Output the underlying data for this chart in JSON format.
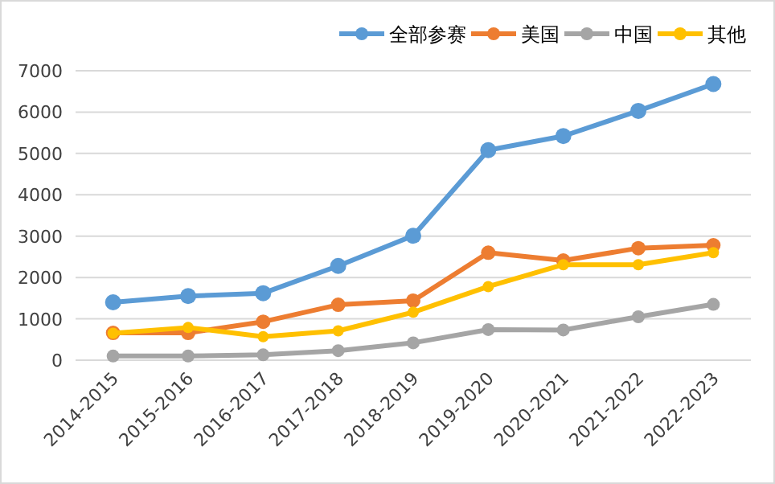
{
  "chart_data": {
    "type": "line",
    "categories": [
      "2014-2015",
      "2015-2016",
      "2016-2017",
      "2017-2018",
      "2018-2019",
      "2019-2020",
      "2020-2021",
      "2021-2022",
      "2022-2023"
    ],
    "series": [
      {
        "name": "全部参赛",
        "color": "#5b9bd5",
        "values": [
          1400,
          1550,
          1620,
          2280,
          3010,
          5080,
          5420,
          6030,
          6680
        ]
      },
      {
        "name": "美国",
        "color": "#ed7d31",
        "values": [
          660,
          660,
          930,
          1340,
          1440,
          2600,
          2410,
          2710,
          2780
        ]
      },
      {
        "name": "中国",
        "color": "#a5a5a5",
        "values": [
          100,
          100,
          130,
          230,
          420,
          740,
          730,
          1050,
          1350
        ]
      },
      {
        "name": "其他",
        "color": "#ffc000",
        "values": [
          650,
          790,
          570,
          710,
          1160,
          1780,
          2310,
          2310,
          2600
        ]
      }
    ],
    "ylim": [
      0,
      7000
    ],
    "yticks": [
      0,
      1000,
      2000,
      3000,
      4000,
      5000,
      6000,
      7000
    ],
    "grid": "y",
    "legend": "top right",
    "marker": "circle",
    "line_style": "solid"
  }
}
